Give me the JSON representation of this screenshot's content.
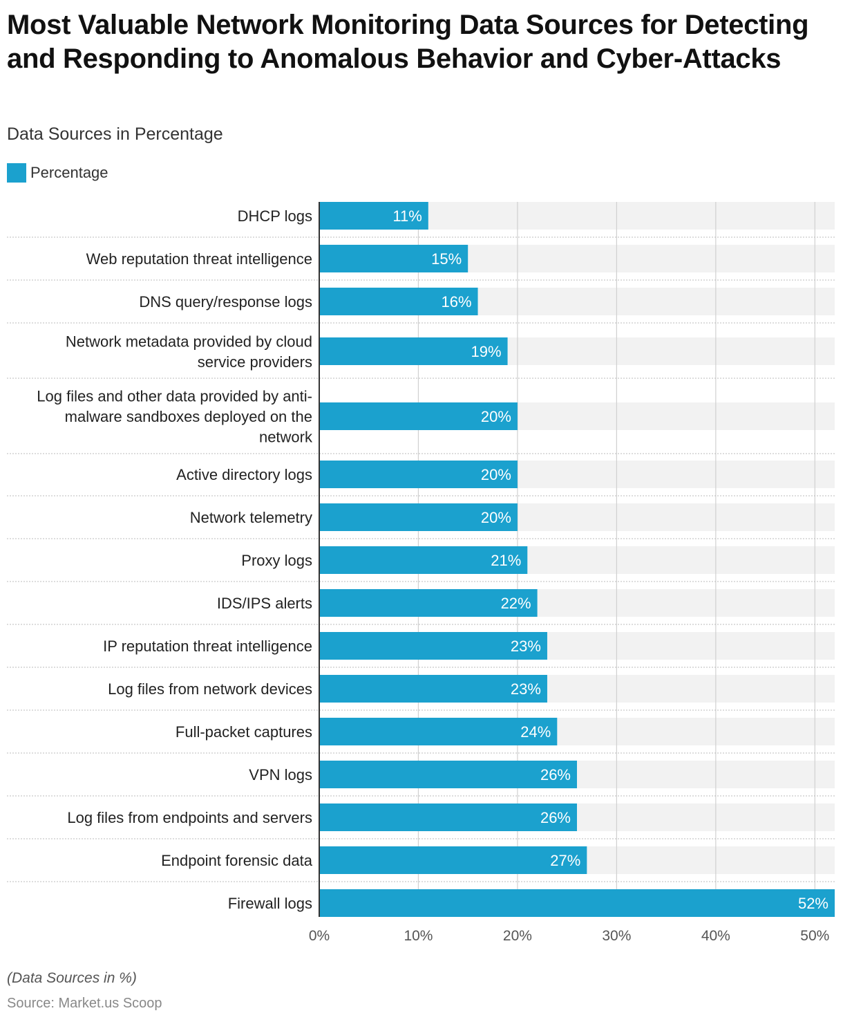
{
  "chart_data": {
    "type": "bar",
    "orientation": "horizontal",
    "title": "Most Valuable Network Monitoring Data Sources for Detecting and Responding to Anomalous Behavior and Cyber-Attacks",
    "subtitle": "Data Sources in Percentage",
    "legend": [
      "Percentage"
    ],
    "legend_position": "top-left",
    "categories": [
      "DHCP logs",
      "Web reputation threat intelligence",
      "DNS query/response logs",
      "Network metadata provided by cloud service providers",
      "Log files and other data provided by anti-malware sandboxes deployed on the network",
      "Active directory logs",
      "Network telemetry",
      "Proxy logs",
      "IDS/IPS alerts",
      "IP reputation threat intelligence",
      "Log files from network devices",
      "Full-packet captures",
      "VPN logs",
      "Log files from endpoints and servers",
      "Endpoint forensic data",
      "Firewall logs"
    ],
    "category_label_lines": [
      [
        "DHCP logs"
      ],
      [
        "Web reputation threat intelligence"
      ],
      [
        "DNS query/response logs"
      ],
      [
        "Network metadata provided by cloud",
        "service providers"
      ],
      [
        "Log files and other data provided by anti-",
        "malware sandboxes deployed on the",
        "network"
      ],
      [
        "Active directory logs"
      ],
      [
        "Network telemetry"
      ],
      [
        "Proxy logs"
      ],
      [
        "IDS/IPS alerts"
      ],
      [
        "IP reputation threat intelligence"
      ],
      [
        "Log files from network devices"
      ],
      [
        "Full-packet captures"
      ],
      [
        "VPN logs"
      ],
      [
        "Log files from endpoints and servers"
      ],
      [
        "Endpoint forensic data"
      ],
      [
        "Firewall logs"
      ]
    ],
    "series": [
      {
        "name": "Percentage",
        "values": [
          11,
          15,
          16,
          19,
          20,
          20,
          20,
          21,
          22,
          23,
          23,
          24,
          26,
          26,
          27,
          52
        ]
      }
    ],
    "value_labels": [
      "11%",
      "15%",
      "16%",
      "19%",
      "20%",
      "20%",
      "20%",
      "21%",
      "22%",
      "23%",
      "23%",
      "24%",
      "26%",
      "26%",
      "27%",
      "52%"
    ],
    "xticks": [
      0,
      10,
      20,
      30,
      40,
      50
    ],
    "xtick_labels": [
      "0%",
      "10%",
      "20%",
      "30%",
      "40%",
      "50%"
    ],
    "xlim": [
      0,
      52
    ],
    "grid": true,
    "colors": {
      "bar": "#1ba1ce",
      "track": "#f2f2f2",
      "grid": "#d0d0d0",
      "axis": "#333333",
      "value_label": "#ffffff"
    }
  },
  "footnote": "(Data Sources in %)",
  "source": "Source: Market.us Scoop"
}
